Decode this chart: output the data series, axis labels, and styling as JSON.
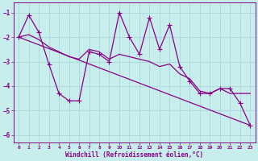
{
  "xlabel": "Windchill (Refroidissement éolien,°C)",
  "background_color": "#c8eded",
  "grid_color": "#a8d8d8",
  "line_color": "#880088",
  "xlim": [
    -0.5,
    23.5
  ],
  "ylim": [
    -6.3,
    -0.6
  ],
  "yticks": [
    -6,
    -5,
    -4,
    -3,
    -2,
    -1
  ],
  "xticks": [
    0,
    1,
    2,
    3,
    4,
    5,
    6,
    7,
    8,
    9,
    10,
    11,
    12,
    13,
    14,
    15,
    16,
    17,
    18,
    19,
    20,
    21,
    22,
    23
  ],
  "line1_x": [
    0,
    1,
    2,
    3,
    4,
    5,
    6,
    7,
    8,
    9,
    10,
    11,
    12,
    13,
    14,
    15,
    16,
    17,
    18,
    19,
    20,
    21,
    22,
    23
  ],
  "line1_y": [
    -2.0,
    -1.1,
    -1.8,
    -3.1,
    -4.3,
    -4.6,
    -4.6,
    -2.6,
    -2.7,
    -3.0,
    -1.0,
    -2.0,
    -2.7,
    -1.2,
    -2.5,
    -1.5,
    -3.2,
    -3.8,
    -4.3,
    -4.3,
    -4.1,
    -4.1,
    -4.7,
    -5.6
  ],
  "line2_x": [
    0,
    23
  ],
  "line2_y": [
    -2.0,
    -5.6
  ],
  "line3_x": [
    0,
    1,
    2,
    3,
    4,
    5,
    6,
    7,
    8,
    9,
    10,
    11,
    12,
    13,
    14,
    15,
    16,
    17,
    18,
    19,
    20,
    21,
    22,
    23
  ],
  "line3_y": [
    -2.0,
    -1.9,
    -2.1,
    -2.4,
    -2.6,
    -2.8,
    -2.9,
    -2.5,
    -2.6,
    -2.9,
    -2.7,
    -2.8,
    -2.9,
    -3.0,
    -3.2,
    -3.1,
    -3.5,
    -3.7,
    -4.2,
    -4.3,
    -4.1,
    -4.3,
    -4.3,
    -4.3
  ]
}
